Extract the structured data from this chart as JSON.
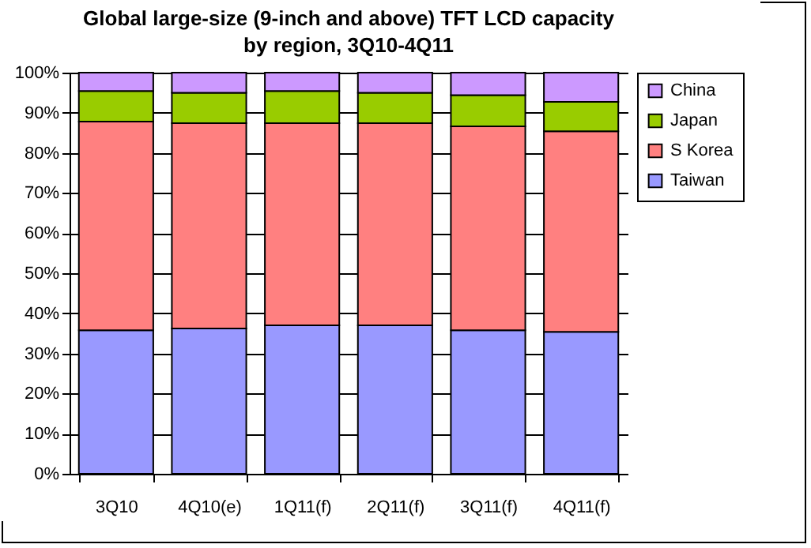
{
  "chart_data": {
    "type": "bar",
    "stacked": true,
    "title": "Global large-size (9-inch and above) TFT LCD capacity by region, 3Q10-4Q11",
    "categories": [
      "3Q10",
      "4Q10(e)",
      "1Q11(f)",
      "2Q11(f)",
      "3Q11(f)",
      "4Q11(f)"
    ],
    "series": [
      {
        "name": "Taiwan",
        "color": "#9999ff",
        "values": [
          35.8,
          36.2,
          37.0,
          37.0,
          35.8,
          35.4
        ]
      },
      {
        "name": "S Korea",
        "color": "#ff8080",
        "values": [
          52.0,
          51.2,
          50.4,
          50.4,
          50.8,
          50.0
        ]
      },
      {
        "name": "Japan",
        "color": "#99cc00",
        "values": [
          7.6,
          7.6,
          8.0,
          7.6,
          7.8,
          7.3
        ]
      },
      {
        "name": "China",
        "color": "#cc99ff",
        "values": [
          4.6,
          5.0,
          4.6,
          5.0,
          5.6,
          7.3
        ]
      }
    ],
    "ylim": [
      0,
      100
    ],
    "yticks": [
      {
        "value": 0,
        "label": "0%"
      },
      {
        "value": 10,
        "label": "10%"
      },
      {
        "value": 20,
        "label": "20%"
      },
      {
        "value": 30,
        "label": "30%"
      },
      {
        "value": 40,
        "label": "40%"
      },
      {
        "value": 50,
        "label": "50%"
      },
      {
        "value": 60,
        "label": "60%"
      },
      {
        "value": 70,
        "label": "70%"
      },
      {
        "value": 80,
        "label": "80%"
      },
      {
        "value": 90,
        "label": "90%"
      },
      {
        "value": 100,
        "label": "100%"
      }
    ],
    "grid": "y",
    "legend": "right"
  }
}
